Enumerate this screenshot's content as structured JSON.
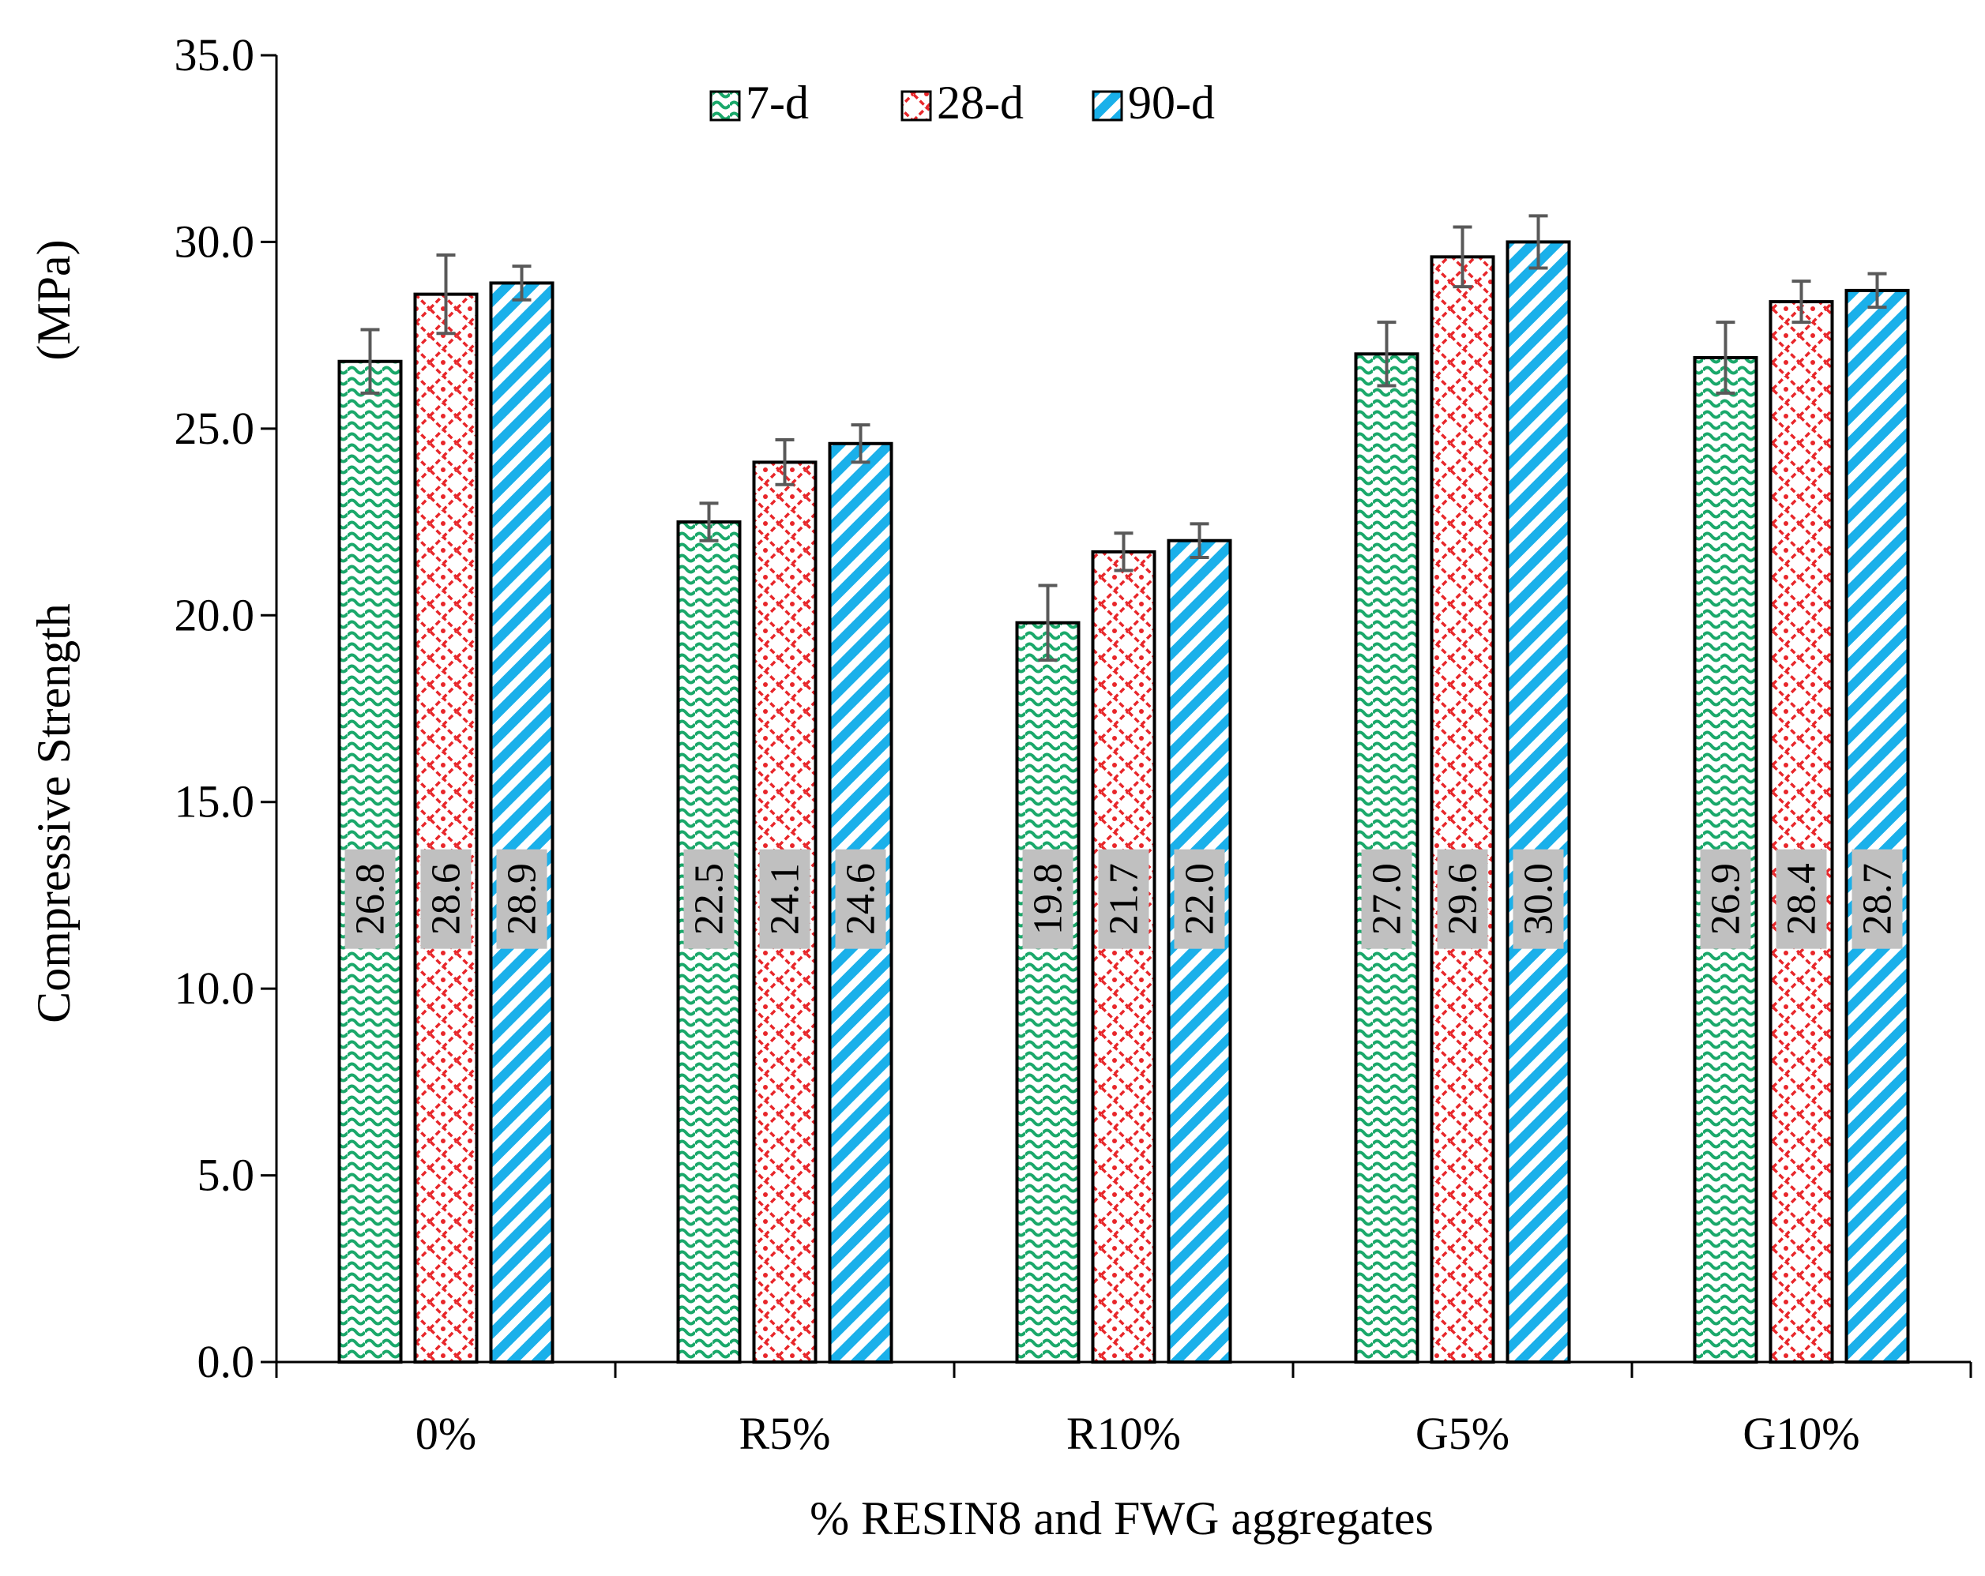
{
  "chart_data": {
    "type": "bar",
    "title": "",
    "xlabel": "% RESIN8 and FWG aggregates",
    "ylabel": "Compressive Strength",
    "ylabel_unit": "(MPa)",
    "categories": [
      "0%",
      "R5%",
      "R10%",
      "G5%",
      "G10%"
    ],
    "ylim": [
      0,
      35
    ],
    "yticks": [
      "0.0",
      "5.0",
      "10.0",
      "15.0",
      "20.0",
      "25.0",
      "30.0",
      "35.0"
    ],
    "legend_position": "top",
    "grid": false,
    "series": [
      {
        "name": "7-d",
        "color": "#1aa86a",
        "pattern": "wave",
        "values": [
          26.8,
          22.5,
          19.8,
          27.0,
          26.9
        ],
        "labels": [
          "26.8",
          "22.5",
          "19.8",
          "27.0",
          "26.9"
        ],
        "errors": [
          0.85,
          0.5,
          1.0,
          0.85,
          0.95
        ]
      },
      {
        "name": "28-d",
        "color": "#e8262a",
        "pattern": "diamond-lattice",
        "values": [
          28.6,
          24.1,
          21.7,
          29.6,
          28.4
        ],
        "labels": [
          "28.6",
          "24.1",
          "21.7",
          "29.6",
          "28.4"
        ],
        "errors": [
          1.05,
          0.6,
          0.5,
          0.8,
          0.55
        ]
      },
      {
        "name": "90-d",
        "color": "#1ab0ea",
        "pattern": "diagonal-stripes",
        "values": [
          28.9,
          24.6,
          22.0,
          30.0,
          28.7
        ],
        "labels": [
          "28.9",
          "24.6",
          "22.0",
          "30.0",
          "28.7"
        ],
        "errors": [
          0.45,
          0.5,
          0.45,
          0.7,
          0.45
        ]
      }
    ],
    "data_label_style": {
      "background": "#c0c0c0",
      "rotation": "vertical",
      "position": "mid-low"
    }
  }
}
